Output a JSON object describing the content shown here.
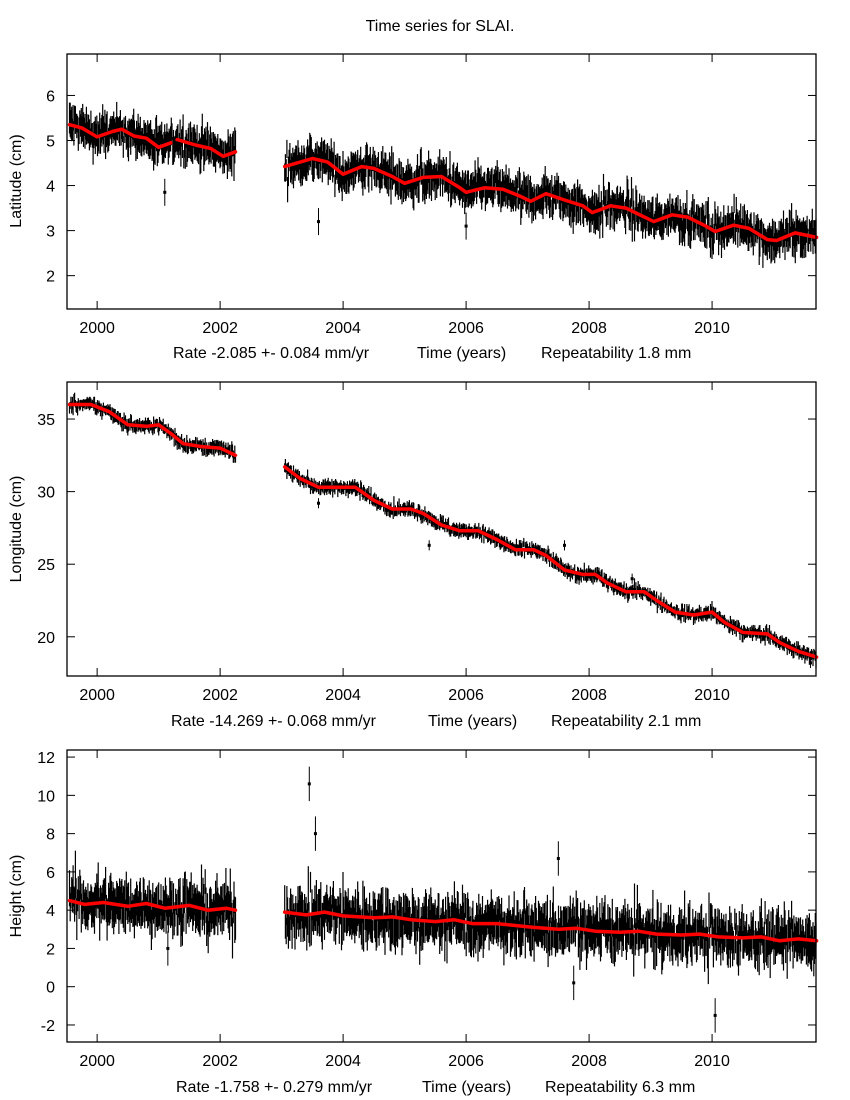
{
  "title": "Time series for SLAI.",
  "chart_data": [
    {
      "type": "scatter",
      "ylabel": "Latitude (cm)",
      "xlabel": "Time (years)",
      "rate_text": "Rate -2.085 +- 0.084 mm/yr",
      "repeat_text": "Repeatability 1.8 mm",
      "xlim": [
        1999.51,
        2011.69
      ],
      "ylim": [
        1.26,
        6.92
      ],
      "xticks": [
        2000,
        2002,
        2004,
        2006,
        2008,
        2010
      ],
      "yticks": [
        2,
        3,
        4,
        5,
        6
      ],
      "obs_color": "#000000",
      "model_color": "#ff0000",
      "obs_scatter": 0.22,
      "obs_errorbar": 0.3,
      "segments": [
        [
          1999.55,
          2002.25
        ],
        [
          2003.05,
          2011.7
        ]
      ],
      "outliers": [
        [
          2001.1,
          3.85
        ],
        [
          2003.6,
          3.2
        ],
        [
          2006.0,
          3.1
        ]
      ],
      "model": [
        [
          [
            1999.55,
            5.35
          ],
          [
            1999.75,
            5.28
          ],
          [
            2000.0,
            5.08
          ],
          [
            2000.25,
            5.2
          ],
          [
            2000.4,
            5.25
          ],
          [
            2000.6,
            5.1
          ],
          [
            2000.8,
            5.05
          ],
          [
            2001.0,
            4.85
          ],
          [
            2001.2,
            4.95
          ]
        ],
        [
          [
            2001.3,
            5.02
          ],
          [
            2001.6,
            4.9
          ],
          [
            2001.85,
            4.82
          ],
          [
            2002.05,
            4.65
          ],
          [
            2002.25,
            4.75
          ]
        ],
        [
          [
            2003.05,
            4.42
          ],
          [
            2003.5,
            4.6
          ],
          [
            2003.75,
            4.52
          ],
          [
            2004.0,
            4.25
          ],
          [
            2004.3,
            4.42
          ],
          [
            2004.5,
            4.38
          ],
          [
            2004.8,
            4.2
          ],
          [
            2005.0,
            4.05
          ],
          [
            2005.3,
            4.18
          ],
          [
            2005.6,
            4.2
          ],
          [
            2005.9,
            3.95
          ],
          [
            2006.0,
            3.85
          ],
          [
            2006.3,
            3.95
          ],
          [
            2006.6,
            3.92
          ],
          [
            2006.9,
            3.75
          ],
          [
            2007.05,
            3.65
          ],
          [
            2007.3,
            3.82
          ],
          [
            2007.6,
            3.68
          ],
          [
            2007.9,
            3.55
          ],
          [
            2008.05,
            3.4
          ],
          [
            2008.35,
            3.55
          ],
          [
            2008.6,
            3.5
          ],
          [
            2008.9,
            3.3
          ],
          [
            2009.05,
            3.2
          ],
          [
            2009.35,
            3.35
          ],
          [
            2009.6,
            3.3
          ],
          [
            2009.9,
            3.1
          ],
          [
            2010.05,
            2.98
          ],
          [
            2010.35,
            3.12
          ],
          [
            2010.6,
            3.05
          ],
          [
            2010.9,
            2.8
          ],
          [
            2011.05,
            2.78
          ],
          [
            2011.35,
            2.95
          ],
          [
            2011.7,
            2.85
          ]
        ]
      ]
    },
    {
      "type": "scatter",
      "ylabel": "Longitude (cm)",
      "xlabel": "Time (years)",
      "rate_text": "Rate -14.269 +- 0.068 mm/yr",
      "repeat_text": "Repeatability 2.1 mm",
      "xlim": [
        1999.51,
        2011.69
      ],
      "ylim": [
        17.3,
        37.55
      ],
      "xticks": [
        2000,
        2002,
        2004,
        2006,
        2008,
        2010
      ],
      "yticks": [
        20,
        25,
        30,
        35
      ],
      "obs_color": "#000000",
      "model_color": "#ff0000",
      "obs_scatter": 0.25,
      "obs_errorbar": 0.35,
      "segments": [
        [
          1999.55,
          2002.25
        ],
        [
          2003.05,
          2011.7
        ]
      ],
      "outliers": [
        [
          2003.6,
          29.2
        ],
        [
          2005.4,
          26.3
        ],
        [
          2007.6,
          26.3
        ],
        [
          2008.7,
          24.0
        ],
        [
          2011.6,
          18.2
        ]
      ],
      "model": [
        [
          [
            1999.55,
            36.0
          ],
          [
            1999.9,
            36.0
          ],
          [
            2000.2,
            35.5
          ],
          [
            2000.5,
            34.6
          ],
          [
            2000.8,
            34.5
          ],
          [
            2001.0,
            34.6
          ],
          [
            2001.2,
            34.0
          ],
          [
            2001.4,
            33.3
          ],
          [
            2001.7,
            33.1
          ],
          [
            2002.0,
            33.0
          ],
          [
            2002.25,
            32.5
          ]
        ],
        [
          [
            2003.05,
            31.7
          ],
          [
            2003.3,
            30.9
          ],
          [
            2003.6,
            30.3
          ],
          [
            2004.0,
            30.3
          ],
          [
            2004.2,
            30.3
          ],
          [
            2004.5,
            29.4
          ],
          [
            2004.8,
            28.8
          ],
          [
            2005.1,
            28.8
          ],
          [
            2005.3,
            28.5
          ],
          [
            2005.6,
            27.7
          ],
          [
            2005.9,
            27.3
          ],
          [
            2006.2,
            27.3
          ],
          [
            2006.5,
            26.7
          ],
          [
            2006.8,
            26.0
          ],
          [
            2007.1,
            26.0
          ],
          [
            2007.3,
            25.6
          ],
          [
            2007.6,
            24.6
          ],
          [
            2007.9,
            24.3
          ],
          [
            2008.1,
            24.3
          ],
          [
            2008.3,
            23.7
          ],
          [
            2008.6,
            23.1
          ],
          [
            2008.9,
            23.1
          ],
          [
            2009.1,
            22.5
          ],
          [
            2009.4,
            21.7
          ],
          [
            2009.7,
            21.5
          ],
          [
            2010.0,
            21.7
          ],
          [
            2010.2,
            21.0
          ],
          [
            2010.5,
            20.3
          ],
          [
            2010.9,
            20.2
          ],
          [
            2011.1,
            19.6
          ],
          [
            2011.4,
            19.0
          ],
          [
            2011.7,
            18.6
          ]
        ]
      ]
    },
    {
      "type": "scatter",
      "ylabel": "Height (cm)",
      "xlabel": "Time (years)",
      "rate_text": "Rate -1.758 +- 0.279 mm/yr",
      "repeat_text": "Repeatability 6.3 mm",
      "xlim": [
        1999.51,
        2011.69
      ],
      "ylim": [
        -2.89,
        12.37
      ],
      "xticks": [
        2000,
        2002,
        2004,
        2006,
        2008,
        2010
      ],
      "yticks": [
        -2,
        0,
        2,
        4,
        6,
        8,
        10,
        12
      ],
      "obs_color": "#000000",
      "model_color": "#ff0000",
      "obs_scatter": 0.75,
      "obs_errorbar": 0.9,
      "segments": [
        [
          1999.55,
          2002.25
        ],
        [
          2003.05,
          2011.7
        ]
      ],
      "outliers": [
        [
          2003.45,
          10.6
        ],
        [
          2010.05,
          -1.5
        ],
        [
          2007.75,
          0.2
        ],
        [
          2001.15,
          2.0
        ],
        [
          2003.55,
          8.0
        ],
        [
          2007.5,
          6.7
        ]
      ],
      "model": [
        [
          [
            1999.55,
            4.5
          ],
          [
            1999.8,
            4.3
          ],
          [
            2000.1,
            4.4
          ],
          [
            2000.5,
            4.2
          ],
          [
            2000.8,
            4.35
          ],
          [
            2001.1,
            4.1
          ],
          [
            2001.5,
            4.25
          ],
          [
            2001.8,
            4.0
          ],
          [
            2002.1,
            4.1
          ],
          [
            2002.25,
            4.0
          ]
        ],
        [
          [
            2003.05,
            3.9
          ],
          [
            2003.4,
            3.75
          ],
          [
            2003.7,
            3.9
          ],
          [
            2004.0,
            3.7
          ],
          [
            2004.5,
            3.6
          ],
          [
            2004.8,
            3.65
          ],
          [
            2005.1,
            3.5
          ],
          [
            2005.5,
            3.4
          ],
          [
            2005.8,
            3.5
          ],
          [
            2006.1,
            3.3
          ],
          [
            2006.5,
            3.3
          ],
          [
            2006.8,
            3.2
          ],
          [
            2007.1,
            3.1
          ],
          [
            2007.5,
            3.0
          ],
          [
            2007.8,
            3.05
          ],
          [
            2008.1,
            2.9
          ],
          [
            2008.5,
            2.85
          ],
          [
            2008.8,
            2.9
          ],
          [
            2009.1,
            2.75
          ],
          [
            2009.5,
            2.7
          ],
          [
            2009.8,
            2.75
          ],
          [
            2010.1,
            2.6
          ],
          [
            2010.5,
            2.55
          ],
          [
            2010.8,
            2.6
          ],
          [
            2011.1,
            2.4
          ],
          [
            2011.4,
            2.5
          ],
          [
            2011.7,
            2.4
          ]
        ]
      ]
    }
  ]
}
